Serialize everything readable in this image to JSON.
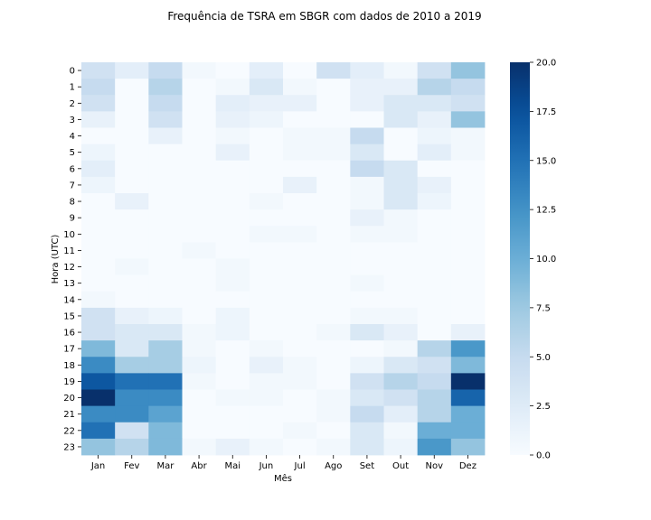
{
  "chart_data": {
    "type": "heatmap",
    "title": "Frequência de TSRA em SBGR com dados de 2010 a 2019",
    "xlabel": "Mês",
    "ylabel": "Hora (UTC)",
    "x_categories": [
      "Jan",
      "Fev",
      "Mar",
      "Abr",
      "Mai",
      "Jun",
      "Jul",
      "Ago",
      "Set",
      "Out",
      "Nov",
      "Dez"
    ],
    "y_categories": [
      "0",
      "1",
      "2",
      "3",
      "4",
      "5",
      "6",
      "7",
      "8",
      "9",
      "10",
      "11",
      "12",
      "13",
      "14",
      "15",
      "16",
      "17",
      "18",
      "19",
      "20",
      "21",
      "22",
      "23"
    ],
    "values": [
      [
        4,
        2,
        5,
        0.5,
        0,
        2,
        0,
        4,
        2,
        0.5,
        4,
        8
      ],
      [
        5,
        0,
        6,
        0,
        0.5,
        3,
        0.5,
        0,
        1.5,
        1.5,
        6,
        5
      ],
      [
        4,
        0,
        5,
        0,
        2,
        1.5,
        1.5,
        0,
        1.5,
        3,
        3,
        4
      ],
      [
        1.5,
        0,
        4,
        0,
        1.5,
        1,
        0,
        0,
        0,
        3,
        1.5,
        8
      ],
      [
        0,
        0,
        1.5,
        0,
        0.5,
        0,
        0.5,
        0.5,
        5,
        0,
        1,
        0.5
      ],
      [
        1,
        0,
        0,
        0,
        1.5,
        0,
        0.5,
        0.5,
        3,
        0,
        2,
        0.5
      ],
      [
        2,
        0,
        0,
        0,
        0,
        0,
        0,
        0,
        5,
        3,
        0,
        0
      ],
      [
        1,
        0,
        0,
        0,
        0,
        0,
        1.5,
        0,
        0.5,
        3,
        1.5,
        0
      ],
      [
        0,
        1.5,
        0,
        0,
        0,
        0.5,
        0,
        0,
        0.5,
        3,
        1,
        0
      ],
      [
        0,
        0,
        0,
        0,
        0,
        0,
        0,
        0,
        1.5,
        0.5,
        0,
        0
      ],
      [
        0,
        0,
        0,
        0,
        0,
        0.5,
        0.5,
        0,
        0.5,
        0.5,
        0,
        0
      ],
      [
        0,
        0,
        0,
        0.5,
        0,
        0,
        0,
        0,
        0,
        0,
        0,
        0
      ],
      [
        0,
        0.5,
        0,
        0,
        0.5,
        0,
        0,
        0,
        0,
        0,
        0,
        0
      ],
      [
        0,
        0,
        0,
        0,
        0.5,
        0,
        0,
        0,
        0.5,
        0,
        0,
        0
      ],
      [
        0.5,
        0,
        0,
        0,
        0,
        0,
        0,
        0,
        0,
        0,
        0,
        0
      ],
      [
        4,
        1.5,
        1,
        0,
        1,
        0,
        0,
        0,
        0.5,
        0.5,
        0,
        0
      ],
      [
        4,
        3,
        3,
        0.5,
        1,
        0,
        0,
        0.5,
        3,
        1.5,
        0,
        1.5
      ],
      [
        9,
        3,
        7,
        0.5,
        0,
        0.5,
        0,
        0,
        0,
        0.5,
        6,
        12
      ],
      [
        13,
        7,
        7,
        1,
        0,
        1.5,
        0.5,
        0,
        1,
        3,
        4,
        9
      ],
      [
        17,
        15,
        15,
        0.5,
        0,
        0.5,
        0.5,
        0,
        4,
        6,
        5,
        20
      ],
      [
        20,
        13,
        13,
        0,
        0.5,
        0.5,
        0,
        0.5,
        3,
        4,
        6,
        16
      ],
      [
        13,
        13,
        11,
        0,
        0,
        0,
        0,
        0.5,
        5,
        2,
        6,
        10
      ],
      [
        15,
        4,
        9,
        0,
        0,
        0,
        0.5,
        0,
        3,
        0.5,
        10,
        10
      ],
      [
        8,
        6,
        9,
        0.5,
        1.5,
        0.5,
        0,
        0.5,
        3,
        1,
        12,
        8
      ]
    ],
    "vmin": 0,
    "vmax": 20,
    "colormap": "Blues",
    "colorbar_ticks": [
      "0.0",
      "2.5",
      "5.0",
      "7.5",
      "10.0",
      "12.5",
      "15.0",
      "17.5",
      "20.0"
    ],
    "colorbar_values": [
      0,
      2.5,
      5,
      7.5,
      10,
      12.5,
      15,
      17.5,
      20
    ],
    "grid": false
  }
}
